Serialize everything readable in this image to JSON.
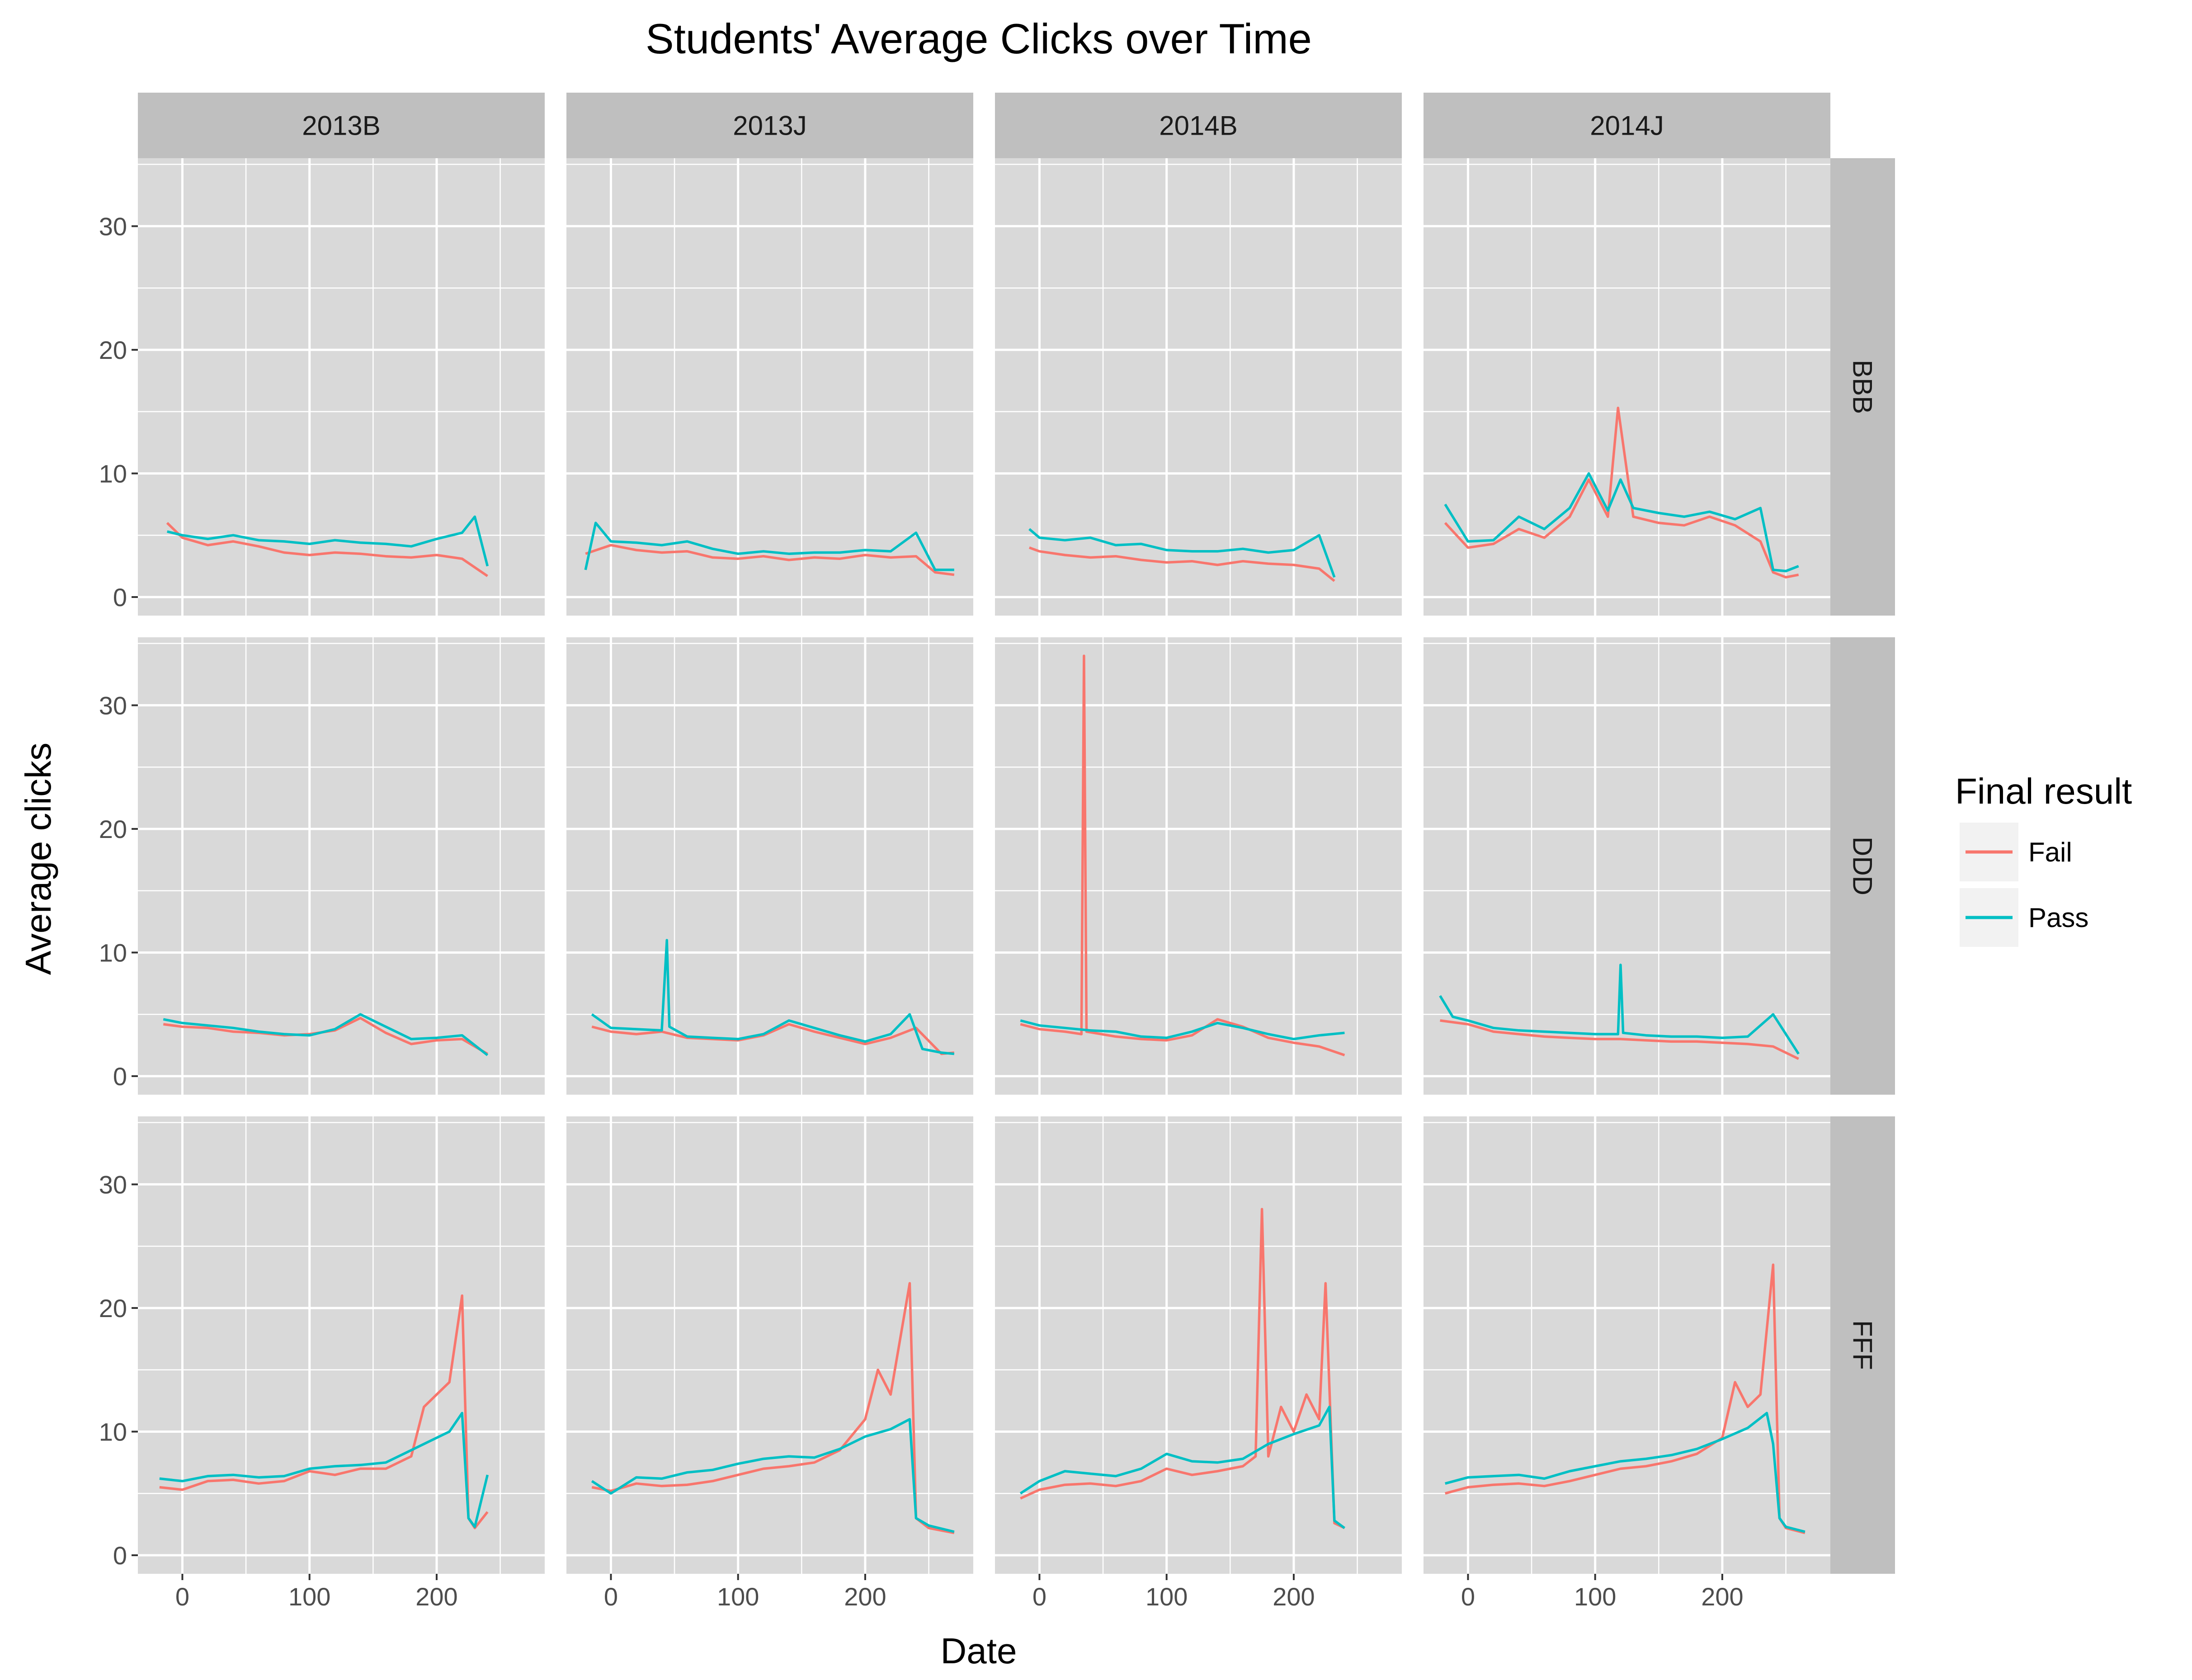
{
  "colors": {
    "panel_bg": "#d9d9d9",
    "strip_bg": "#bfbfbf",
    "grid": "#ffffff",
    "tick": "#333333",
    "fail": "#f8766d",
    "pass": "#00bfc4"
  },
  "chart_data": {
    "type": "line",
    "title": "Students' Average Clicks over Time",
    "xlabel": "Date",
    "ylabel": "Average clicks",
    "xlim": [
      -35,
      285
    ],
    "ylim": [
      -1.5,
      35.5
    ],
    "x_ticks": [
      0,
      100,
      200
    ],
    "y_ticks": [
      0,
      10,
      20,
      30
    ],
    "grid": true,
    "column_facets": [
      "2013B",
      "2013J",
      "2014B",
      "2014J"
    ],
    "row_facets": [
      "BBB",
      "DDD",
      "FFF"
    ],
    "legend": {
      "title": "Final result",
      "position": "right",
      "entries": [
        {
          "label": "Fail",
          "color": "#f8766d"
        },
        {
          "label": "Pass",
          "color": "#00bfc4"
        }
      ]
    },
    "panels": [
      {
        "row": "BBB",
        "col": "2013B",
        "series": [
          {
            "name": "Fail",
            "x": [
              -12,
              0,
              20,
              40,
              60,
              80,
              100,
              120,
              140,
              160,
              180,
              200,
              220,
              240
            ],
            "y": [
              6,
              4.8,
              4.2,
              4.5,
              4.1,
              3.6,
              3.4,
              3.6,
              3.5,
              3.3,
              3.2,
              3.4,
              3.1,
              1.7
            ]
          },
          {
            "name": "Pass",
            "x": [
              -12,
              0,
              20,
              40,
              60,
              80,
              100,
              120,
              140,
              160,
              180,
              200,
              220,
              230,
              240
            ],
            "y": [
              5.3,
              5,
              4.7,
              5,
              4.6,
              4.5,
              4.3,
              4.6,
              4.4,
              4.3,
              4.1,
              4.7,
              5.2,
              6.5,
              2.5
            ]
          }
        ]
      },
      {
        "row": "BBB",
        "col": "2013J",
        "series": [
          {
            "name": "Fail",
            "x": [
              -20,
              0,
              20,
              40,
              60,
              80,
              100,
              120,
              140,
              160,
              180,
              200,
              220,
              240,
              255,
              270
            ],
            "y": [
              3.5,
              4.2,
              3.8,
              3.6,
              3.7,
              3.2,
              3.1,
              3.3,
              3,
              3.2,
              3.1,
              3.4,
              3.2,
              3.3,
              2,
              1.8
            ]
          },
          {
            "name": "Pass",
            "x": [
              -20,
              -12,
              0,
              20,
              40,
              60,
              80,
              100,
              120,
              140,
              160,
              180,
              200,
              220,
              240,
              255,
              270
            ],
            "y": [
              2.2,
              6,
              4.5,
              4.4,
              4.2,
              4.5,
              3.9,
              3.5,
              3.7,
              3.5,
              3.6,
              3.6,
              3.8,
              3.7,
              5.2,
              2.2,
              2.2
            ]
          }
        ]
      },
      {
        "row": "BBB",
        "col": "2014B",
        "series": [
          {
            "name": "Fail",
            "x": [
              -8,
              0,
              20,
              40,
              60,
              80,
              100,
              120,
              140,
              160,
              180,
              200,
              220,
              232
            ],
            "y": [
              4,
              3.7,
              3.4,
              3.2,
              3.3,
              3,
              2.8,
              2.9,
              2.6,
              2.9,
              2.7,
              2.6,
              2.3,
              1.3
            ]
          },
          {
            "name": "Pass",
            "x": [
              -8,
              0,
              20,
              40,
              60,
              80,
              100,
              120,
              140,
              160,
              180,
              200,
              220,
              232
            ],
            "y": [
              5.5,
              4.8,
              4.6,
              4.8,
              4.2,
              4.3,
              3.8,
              3.7,
              3.7,
              3.9,
              3.6,
              3.8,
              5,
              1.6
            ]
          }
        ]
      },
      {
        "row": "BBB",
        "col": "2014J",
        "series": [
          {
            "name": "Fail",
            "x": [
              -18,
              0,
              20,
              40,
              60,
              80,
              95,
              110,
              118,
              130,
              150,
              170,
              190,
              210,
              230,
              240,
              250,
              260
            ],
            "y": [
              6,
              4,
              4.3,
              5.5,
              4.8,
              6.5,
              9.5,
              6.5,
              15.3,
              6.5,
              6,
              5.8,
              6.5,
              5.8,
              4.5,
              2,
              1.6,
              1.8
            ]
          },
          {
            "name": "Pass",
            "x": [
              -18,
              0,
              20,
              40,
              60,
              80,
              95,
              110,
              120,
              130,
              150,
              170,
              190,
              210,
              230,
              240,
              250,
              260
            ],
            "y": [
              7.5,
              4.5,
              4.6,
              6.5,
              5.5,
              7.2,
              10,
              7,
              9.5,
              7.2,
              6.8,
              6.5,
              6.9,
              6.3,
              7.2,
              2.2,
              2.1,
              2.5
            ]
          }
        ]
      },
      {
        "row": "DDD",
        "col": "2013B",
        "series": [
          {
            "name": "Fail",
            "x": [
              -15,
              0,
              20,
              40,
              60,
              80,
              100,
              120,
              140,
              160,
              180,
              200,
              220,
              240
            ],
            "y": [
              4.2,
              4,
              3.9,
              3.6,
              3.5,
              3.3,
              3.4,
              3.7,
              4.7,
              3.5,
              2.6,
              2.9,
              3,
              1.8
            ]
          },
          {
            "name": "Pass",
            "x": [
              -15,
              0,
              20,
              40,
              60,
              80,
              100,
              120,
              140,
              160,
              180,
              200,
              220,
              240
            ],
            "y": [
              4.6,
              4.3,
              4.1,
              3.9,
              3.6,
              3.4,
              3.3,
              3.8,
              5,
              4,
              3,
              3.1,
              3.3,
              1.7
            ]
          }
        ]
      },
      {
        "row": "DDD",
        "col": "2013J",
        "series": [
          {
            "name": "Fail",
            "x": [
              -15,
              0,
              20,
              40,
              60,
              80,
              100,
              120,
              140,
              160,
              180,
              200,
              220,
              240,
              260,
              270
            ],
            "y": [
              4,
              3.6,
              3.4,
              3.6,
              3.1,
              3,
              2.9,
              3.3,
              4.2,
              3.6,
              3.1,
              2.6,
              3.1,
              3.9,
              1.8,
              1.9
            ]
          },
          {
            "name": "Pass",
            "x": [
              -15,
              0,
              20,
              40,
              44,
              46,
              60,
              80,
              100,
              120,
              140,
              160,
              180,
              200,
              220,
              235,
              245,
              260,
              270
            ],
            "y": [
              5,
              3.9,
              3.8,
              3.7,
              11,
              4,
              3.2,
              3.1,
              3,
              3.4,
              4.5,
              3.9,
              3.3,
              2.8,
              3.4,
              5,
              2.2,
              1.9,
              1.8
            ]
          }
        ]
      },
      {
        "row": "DDD",
        "col": "2014B",
        "series": [
          {
            "name": "Fail",
            "x": [
              -15,
              0,
              20,
              33,
              35,
              37,
              60,
              80,
              100,
              120,
              140,
              160,
              180,
              200,
              220,
              240
            ],
            "y": [
              4.2,
              3.8,
              3.6,
              3.4,
              34,
              3.6,
              3.2,
              3,
              2.9,
              3.3,
              4.6,
              4,
              3.1,
              2.7,
              2.4,
              1.7
            ]
          },
          {
            "name": "Pass",
            "x": [
              -15,
              0,
              20,
              40,
              60,
              80,
              100,
              120,
              140,
              160,
              180,
              200,
              220,
              240
            ],
            "y": [
              4.5,
              4.1,
              3.9,
              3.7,
              3.6,
              3.2,
              3.1,
              3.6,
              4.3,
              3.9,
              3.4,
              3,
              3.3,
              3.5
            ]
          }
        ]
      },
      {
        "row": "DDD",
        "col": "2014J",
        "series": [
          {
            "name": "Fail",
            "x": [
              -22,
              0,
              20,
              40,
              60,
              80,
              100,
              120,
              140,
              160,
              180,
              200,
              220,
              240,
              260
            ],
            "y": [
              4.5,
              4.2,
              3.6,
              3.4,
              3.2,
              3.1,
              3,
              3,
              2.9,
              2.8,
              2.8,
              2.7,
              2.6,
              2.4,
              1.4
            ]
          },
          {
            "name": "Pass",
            "x": [
              -22,
              -12,
              0,
              20,
              40,
              60,
              80,
              100,
              118,
              120,
              122,
              140,
              160,
              180,
              200,
              220,
              240,
              260
            ],
            "y": [
              6.5,
              4.8,
              4.5,
              3.9,
              3.7,
              3.6,
              3.5,
              3.4,
              3.4,
              9,
              3.5,
              3.3,
              3.2,
              3.2,
              3.1,
              3.2,
              5,
              1.8
            ]
          }
        ]
      },
      {
        "row": "FFF",
        "col": "2013B",
        "series": [
          {
            "name": "Fail",
            "x": [
              -18,
              0,
              20,
              40,
              60,
              80,
              100,
              120,
              140,
              160,
              180,
              190,
              200,
              210,
              220,
              225,
              230,
              240
            ],
            "y": [
              5.5,
              5.3,
              6,
              6.1,
              5.8,
              6,
              6.8,
              6.5,
              7,
              7,
              8,
              12,
              13,
              14,
              21,
              3,
              2.2,
              3.5
            ]
          },
          {
            "name": "Pass",
            "x": [
              -18,
              0,
              20,
              40,
              60,
              80,
              100,
              120,
              140,
              160,
              180,
              200,
              210,
              220,
              225,
              230,
              240
            ],
            "y": [
              6.2,
              6,
              6.4,
              6.5,
              6.3,
              6.4,
              7,
              7.2,
              7.3,
              7.5,
              8.5,
              9.5,
              10,
              11.5,
              3,
              2.3,
              6.5
            ]
          }
        ]
      },
      {
        "row": "FFF",
        "col": "2013J",
        "series": [
          {
            "name": "Fail",
            "x": [
              -15,
              0,
              20,
              40,
              60,
              80,
              100,
              120,
              140,
              160,
              180,
              200,
              210,
              220,
              235,
              240,
              250,
              270
            ],
            "y": [
              5.5,
              5.2,
              5.8,
              5.6,
              5.7,
              6,
              6.5,
              7,
              7.2,
              7.5,
              8.5,
              11,
              15,
              13,
              22,
              3,
              2.2,
              1.8
            ]
          },
          {
            "name": "Pass",
            "x": [
              -15,
              0,
              20,
              40,
              60,
              80,
              100,
              120,
              140,
              160,
              180,
              200,
              220,
              235,
              240,
              250,
              270
            ],
            "y": [
              6,
              5,
              6.3,
              6.2,
              6.7,
              6.9,
              7.4,
              7.8,
              8,
              7.9,
              8.6,
              9.6,
              10.2,
              11,
              3,
              2.4,
              1.9
            ]
          }
        ]
      },
      {
        "row": "FFF",
        "col": "2014B",
        "series": [
          {
            "name": "Fail",
            "x": [
              -15,
              0,
              20,
              40,
              60,
              80,
              100,
              120,
              140,
              160,
              170,
              175,
              180,
              190,
              200,
              210,
              220,
              225,
              232,
              240
            ],
            "y": [
              4.6,
              5.3,
              5.7,
              5.8,
              5.6,
              6,
              7,
              6.5,
              6.8,
              7.2,
              8,
              28,
              8,
              12,
              10,
              13,
              11,
              22,
              2.6,
              2.2
            ]
          },
          {
            "name": "Pass",
            "x": [
              -15,
              0,
              20,
              40,
              60,
              80,
              100,
              120,
              140,
              160,
              180,
              200,
              220,
              228,
              232,
              240
            ],
            "y": [
              5,
              6,
              6.8,
              6.6,
              6.4,
              7,
              8.2,
              7.6,
              7.5,
              7.8,
              9,
              9.8,
              10.5,
              12,
              2.8,
              2.2
            ]
          }
        ]
      },
      {
        "row": "FFF",
        "col": "2014J",
        "series": [
          {
            "name": "Fail",
            "x": [
              -18,
              0,
              20,
              40,
              60,
              80,
              100,
              120,
              140,
              160,
              180,
              200,
              210,
              220,
              230,
              240,
              245,
              250,
              265
            ],
            "y": [
              5,
              5.5,
              5.7,
              5.8,
              5.6,
              6,
              6.5,
              7,
              7.2,
              7.6,
              8.2,
              9.5,
              14,
              12,
              13,
              23.5,
              3,
              2.2,
              1.8
            ]
          },
          {
            "name": "Pass",
            "x": [
              -18,
              0,
              20,
              40,
              60,
              80,
              100,
              120,
              140,
              160,
              180,
              200,
              220,
              235,
              240,
              245,
              250,
              265
            ],
            "y": [
              5.8,
              6.3,
              6.4,
              6.5,
              6.2,
              6.8,
              7.2,
              7.6,
              7.8,
              8.1,
              8.6,
              9.4,
              10.3,
              11.5,
              9,
              3,
              2.3,
              1.9
            ]
          }
        ]
      }
    ]
  }
}
